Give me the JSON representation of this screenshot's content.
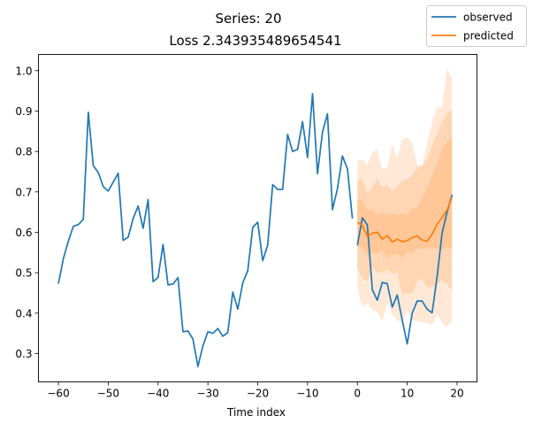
{
  "chart_data": {
    "type": "line",
    "title": "Series: 20",
    "subtitle": "Loss 2.343935489654541",
    "xlabel": "Time index",
    "ylabel": "",
    "xlim": [
      -64,
      24
    ],
    "ylim": [
      0.23,
      1.04
    ],
    "xticks": [
      -60,
      -50,
      -40,
      -30,
      -20,
      -10,
      0,
      10,
      20
    ],
    "yticks": [
      0.3,
      0.4,
      0.5,
      0.6,
      0.7,
      0.8,
      0.9,
      1.0
    ],
    "legend": {
      "placement": "top-right",
      "entries": [
        "observed",
        "predicted"
      ]
    },
    "colors": {
      "observed": "#1f77b4",
      "predicted": "#ff7f0e"
    },
    "observed_past": {
      "x": [
        -60,
        -59,
        -58,
        -57,
        -56,
        -55,
        -54,
        -53,
        -52,
        -51,
        -50,
        -49,
        -48,
        -47,
        -46,
        -45,
        -44,
        -43,
        -42,
        -41,
        -40,
        -39,
        -38,
        -37,
        -36,
        -35,
        -34,
        -33,
        -32,
        -31,
        -30,
        -29,
        -28,
        -27,
        -26,
        -25,
        -24,
        -23,
        -22,
        -21,
        -20,
        -19,
        -18,
        -17,
        -16,
        -15,
        -14,
        -13,
        -12,
        -11,
        -10,
        -9,
        -8,
        -7,
        -6,
        -5,
        -4,
        -3,
        -2,
        -1
      ],
      "y": [
        0.473,
        0.535,
        0.578,
        0.615,
        0.619,
        0.632,
        0.897,
        0.765,
        0.748,
        0.713,
        0.702,
        0.724,
        0.746,
        0.58,
        0.588,
        0.634,
        0.665,
        0.61,
        0.681,
        0.478,
        0.488,
        0.57,
        0.47,
        0.472,
        0.488,
        0.354,
        0.356,
        0.336,
        0.268,
        0.319,
        0.354,
        0.35,
        0.362,
        0.343,
        0.352,
        0.452,
        0.41,
        0.475,
        0.505,
        0.612,
        0.625,
        0.53,
        0.568,
        0.718,
        0.706,
        0.706,
        0.842,
        0.8,
        0.805,
        0.874,
        0.785,
        0.943,
        0.745,
        0.848,
        0.893,
        0.656,
        0.708,
        0.789,
        0.757,
        0.634
      ]
    },
    "observed_future": {
      "x": [
        0,
        1,
        2,
        3,
        4,
        5,
        6,
        7,
        8,
        9,
        10,
        11,
        12,
        13,
        14,
        15,
        16,
        17,
        18,
        19
      ],
      "y": [
        0.568,
        0.636,
        0.618,
        0.458,
        0.432,
        0.476,
        0.473,
        0.415,
        0.445,
        0.383,
        0.324,
        0.4,
        0.43,
        0.43,
        0.41,
        0.401,
        0.49,
        0.598,
        0.65,
        0.693
      ]
    },
    "predicted": {
      "x": [
        0,
        1,
        2,
        3,
        4,
        5,
        6,
        7,
        8,
        9,
        10,
        11,
        12,
        13,
        14,
        15,
        16,
        17,
        18,
        19
      ],
      "median": [
        0.625,
        0.617,
        0.59,
        0.598,
        0.6,
        0.583,
        0.592,
        0.576,
        0.583,
        0.577,
        0.579,
        0.587,
        0.591,
        0.581,
        0.578,
        0.595,
        0.62,
        0.637,
        0.655,
        0.688
      ],
      "bands": [
        {
          "lower": [
            0.464,
            0.413,
            0.424,
            0.409,
            0.402,
            0.38,
            0.424,
            0.398,
            0.383,
            0.376,
            0.405,
            0.383,
            0.38,
            0.376,
            0.376,
            0.369,
            0.398,
            0.376,
            0.365,
            0.383
          ],
          "upper": [
            0.777,
            0.78,
            0.767,
            0.797,
            0.804,
            0.756,
            0.76,
            0.819,
            0.782,
            0.83,
            0.835,
            0.822,
            0.767,
            0.764,
            0.822,
            0.873,
            0.909,
            0.91,
            1.005,
            0.98
          ]
        },
        {
          "lower": [
            0.511,
            0.486,
            0.478,
            0.515,
            0.5,
            0.5,
            0.508,
            0.497,
            0.5,
            0.445,
            0.449,
            0.449,
            0.478,
            0.486,
            0.464,
            0.464,
            0.471,
            0.482,
            0.471,
            0.456
          ],
          "upper": [
            0.727,
            0.734,
            0.698,
            0.713,
            0.731,
            0.713,
            0.716,
            0.702,
            0.713,
            0.727,
            0.731,
            0.742,
            0.76,
            0.764,
            0.782,
            0.815,
            0.844,
            0.873,
            0.895,
            0.903
          ]
        },
        {
          "lower": [
            0.566,
            0.563,
            0.544,
            0.552,
            0.548,
            0.555,
            0.537,
            0.544,
            0.548,
            0.537,
            0.552,
            0.548,
            0.559,
            0.559,
            0.559,
            0.563,
            0.559,
            0.559,
            0.563,
            0.559
          ],
          "upper": [
            0.683,
            0.68,
            0.654,
            0.658,
            0.643,
            0.65,
            0.643,
            0.647,
            0.643,
            0.647,
            0.643,
            0.658,
            0.661,
            0.687,
            0.709,
            0.742,
            0.771,
            0.808,
            0.822,
            0.837
          ]
        }
      ]
    }
  }
}
